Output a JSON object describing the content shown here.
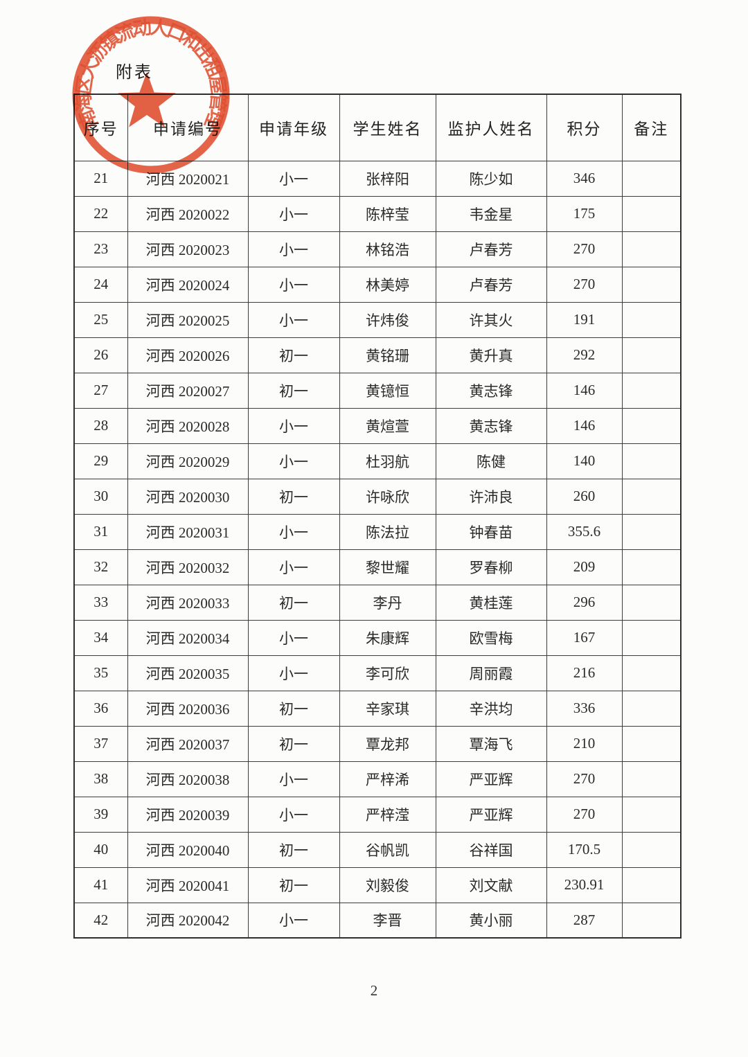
{
  "page": {
    "label": "附表",
    "page_number": "2"
  },
  "stamp": {
    "arc_text": "南海区大沥镇流动人口和出租屋管理",
    "color": "#e0401f",
    "star_icon": "red-star"
  },
  "table": {
    "headers": [
      "序号",
      "申请编号",
      "申请年级",
      "学生姓名",
      "监护人姓名",
      "积分",
      "备注"
    ],
    "col_keys": [
      "no",
      "application-id",
      "grade",
      "student-name",
      "guardian-name",
      "score",
      "remark"
    ],
    "rows": [
      [
        "21",
        "河西 2020021",
        "小一",
        "张梓阳",
        "陈少如",
        "346",
        ""
      ],
      [
        "22",
        "河西 2020022",
        "小一",
        "陈梓莹",
        "韦金星",
        "175",
        ""
      ],
      [
        "23",
        "河西 2020023",
        "小一",
        "林铭浩",
        "卢春芳",
        "270",
        ""
      ],
      [
        "24",
        "河西 2020024",
        "小一",
        "林美婷",
        "卢春芳",
        "270",
        ""
      ],
      [
        "25",
        "河西 2020025",
        "小一",
        "许炜俊",
        "许其火",
        "191",
        ""
      ],
      [
        "26",
        "河西 2020026",
        "初一",
        "黄铭珊",
        "黄升真",
        "292",
        ""
      ],
      [
        "27",
        "河西 2020027",
        "初一",
        "黄镱恒",
        "黄志锋",
        "146",
        ""
      ],
      [
        "28",
        "河西 2020028",
        "小一",
        "黄煊萱",
        "黄志锋",
        "146",
        ""
      ],
      [
        "29",
        "河西 2020029",
        "小一",
        "杜羽航",
        "陈健",
        "140",
        ""
      ],
      [
        "30",
        "河西 2020030",
        "初一",
        "许咏欣",
        "许沛良",
        "260",
        ""
      ],
      [
        "31",
        "河西 2020031",
        "小一",
        "陈法拉",
        "钟春苗",
        "355.6",
        ""
      ],
      [
        "32",
        "河西 2020032",
        "小一",
        "黎世耀",
        "罗春柳",
        "209",
        ""
      ],
      [
        "33",
        "河西 2020033",
        "初一",
        "李丹",
        "黄桂莲",
        "296",
        ""
      ],
      [
        "34",
        "河西 2020034",
        "小一",
        "朱康辉",
        "欧雪梅",
        "167",
        ""
      ],
      [
        "35",
        "河西 2020035",
        "小一",
        "李可欣",
        "周丽霞",
        "216",
        ""
      ],
      [
        "36",
        "河西 2020036",
        "初一",
        "辛家琪",
        "辛洪均",
        "336",
        ""
      ],
      [
        "37",
        "河西 2020037",
        "初一",
        "覃龙邦",
        "覃海飞",
        "210",
        ""
      ],
      [
        "38",
        "河西 2020038",
        "小一",
        "严梓浠",
        "严亚辉",
        "270",
        ""
      ],
      [
        "39",
        "河西 2020039",
        "小一",
        "严梓滢",
        "严亚辉",
        "270",
        ""
      ],
      [
        "40",
        "河西 2020040",
        "初一",
        "谷帆凯",
        "谷祥国",
        "170.5",
        ""
      ],
      [
        "41",
        "河西 2020041",
        "初一",
        "刘毅俊",
        "刘文献",
        "230.91",
        ""
      ],
      [
        "42",
        "河西 2020042",
        "小一",
        "李晋",
        "黄小丽",
        "287",
        ""
      ]
    ]
  }
}
